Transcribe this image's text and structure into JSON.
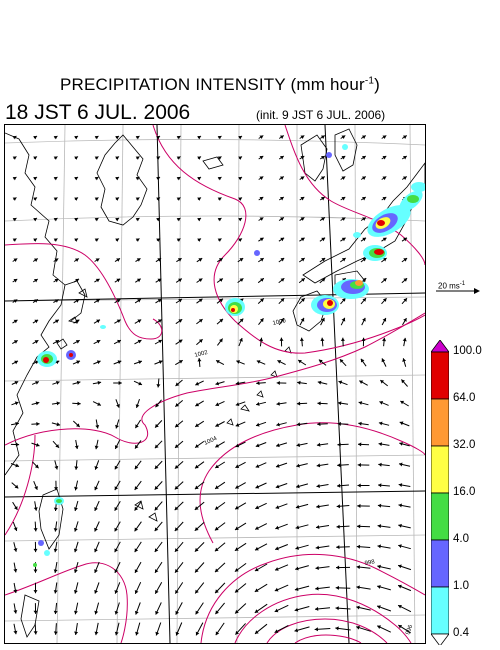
{
  "header": {
    "title_main": "PRECIPITATION INTENSITY (mm hour",
    "title_exp": "-1",
    "title_close": ")",
    "datetime": "18 JST 6 JUL. 2006",
    "init": "(init. 9 JST 6 JUL. 2006)"
  },
  "reference_vector": {
    "label": "20 ms",
    "label_exp": "-1"
  },
  "contour_labels": [
    "1000",
    "1002",
    "1004",
    "996",
    "998"
  ],
  "colorbar": {
    "boundaries": [
      "100.0",
      "64.0",
      "32.0",
      "16.0",
      "4.0",
      "1.0",
      "0.4"
    ],
    "colors": [
      "#cc00cc",
      "#e00000",
      "#ff9933",
      "#ffff44",
      "#44dd44",
      "#6666ff",
      "#66ffff",
      "#ffffff"
    ]
  },
  "map": {
    "wind_field": "low-pressure circulation south, southwesterly flow toward Japan",
    "line_color": "#cc0066",
    "precip_cells": [
      {
        "where": "Kyushu west coast",
        "max_class": "64.0-100.0"
      },
      {
        "where": "Kyushu interior",
        "max_class": "64.0-100.0"
      },
      {
        "where": "Shikoku / Kii Peninsula",
        "max_class": "64.0-100.0"
      },
      {
        "where": "Tokai",
        "max_class": "32.0-64.0"
      },
      {
        "where": "Okinawa",
        "max_class": "64.0-100.0"
      },
      {
        "where": "Taiwan",
        "max_class": "4.0-16.0"
      }
    ]
  }
}
